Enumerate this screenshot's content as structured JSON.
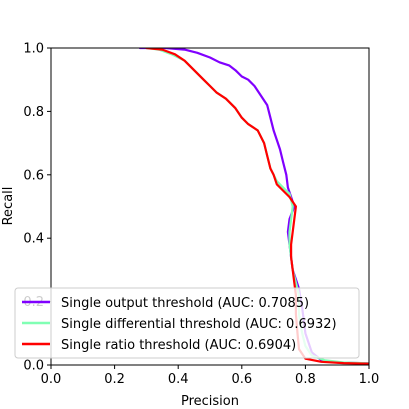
{
  "chart_data": {
    "type": "line",
    "xlabel": "Precision",
    "ylabel": "Recall",
    "xlim": [
      0.0,
      1.0
    ],
    "ylim": [
      0.0,
      1.0
    ],
    "x_ticks": [
      "0.0",
      "0.2",
      "0.4",
      "0.6",
      "0.8",
      "1.0"
    ],
    "y_ticks": [
      "0.0",
      "0.2",
      "0.4",
      "0.6",
      "0.8",
      "1.0"
    ],
    "grid": false,
    "legend_position": "lower-left",
    "series": [
      {
        "name": "Single output threshold (AUC: 0.7085)",
        "color": "#8000ff",
        "points": [
          [
            0.28,
            1.0
          ],
          [
            0.36,
            1.0
          ],
          [
            0.42,
            0.995
          ],
          [
            0.46,
            0.985
          ],
          [
            0.5,
            0.97
          ],
          [
            0.53,
            0.955
          ],
          [
            0.56,
            0.945
          ],
          [
            0.58,
            0.93
          ],
          [
            0.6,
            0.91
          ],
          [
            0.62,
            0.9
          ],
          [
            0.64,
            0.88
          ],
          [
            0.66,
            0.85
          ],
          [
            0.68,
            0.82
          ],
          [
            0.69,
            0.78
          ],
          [
            0.7,
            0.74
          ],
          [
            0.71,
            0.71
          ],
          [
            0.72,
            0.68
          ],
          [
            0.73,
            0.64
          ],
          [
            0.74,
            0.6
          ],
          [
            0.745,
            0.56
          ],
          [
            0.755,
            0.53
          ],
          [
            0.765,
            0.5
          ],
          [
            0.75,
            0.46
          ],
          [
            0.745,
            0.42
          ],
          [
            0.75,
            0.38
          ],
          [
            0.755,
            0.34
          ],
          [
            0.76,
            0.3
          ],
          [
            0.77,
            0.27
          ],
          [
            0.78,
            0.24
          ],
          [
            0.79,
            0.18
          ],
          [
            0.8,
            0.1
          ],
          [
            0.82,
            0.04
          ],
          [
            0.85,
            0.015
          ],
          [
            0.9,
            0.008
          ],
          [
            1.0,
            0.005
          ]
        ]
      },
      {
        "name": "Single differential threshold (AUC: 0.6932)",
        "color": "#80ffb4",
        "points": [
          [
            0.3,
            1.0
          ],
          [
            0.34,
            0.995
          ],
          [
            0.38,
            0.98
          ],
          [
            0.42,
            0.96
          ],
          [
            0.45,
            0.93
          ],
          [
            0.48,
            0.9
          ],
          [
            0.5,
            0.88
          ],
          [
            0.52,
            0.86
          ],
          [
            0.55,
            0.84
          ],
          [
            0.58,
            0.81
          ],
          [
            0.6,
            0.78
          ],
          [
            0.62,
            0.76
          ],
          [
            0.65,
            0.74
          ],
          [
            0.67,
            0.7
          ],
          [
            0.68,
            0.66
          ],
          [
            0.69,
            0.62
          ],
          [
            0.7,
            0.6
          ],
          [
            0.71,
            0.58
          ],
          [
            0.73,
            0.56
          ],
          [
            0.75,
            0.54
          ],
          [
            0.76,
            0.5
          ],
          [
            0.755,
            0.46
          ],
          [
            0.75,
            0.42
          ],
          [
            0.75,
            0.38
          ],
          [
            0.755,
            0.34
          ],
          [
            0.76,
            0.3
          ],
          [
            0.77,
            0.26
          ],
          [
            0.78,
            0.22
          ],
          [
            0.78,
            0.16
          ],
          [
            0.79,
            0.1
          ],
          [
            0.8,
            0.06
          ],
          [
            0.82,
            0.03
          ],
          [
            0.86,
            0.015
          ],
          [
            0.92,
            0.008
          ],
          [
            1.0,
            0.005
          ]
        ]
      },
      {
        "name": "Single ratio threshold (AUC: 0.6904)",
        "color": "#ff0000",
        "points": [
          [
            0.3,
            1.0
          ],
          [
            0.35,
            0.995
          ],
          [
            0.39,
            0.98
          ],
          [
            0.42,
            0.96
          ],
          [
            0.45,
            0.93
          ],
          [
            0.48,
            0.9
          ],
          [
            0.5,
            0.88
          ],
          [
            0.52,
            0.86
          ],
          [
            0.55,
            0.84
          ],
          [
            0.58,
            0.81
          ],
          [
            0.6,
            0.78
          ],
          [
            0.62,
            0.76
          ],
          [
            0.65,
            0.74
          ],
          [
            0.67,
            0.7
          ],
          [
            0.68,
            0.66
          ],
          [
            0.69,
            0.62
          ],
          [
            0.7,
            0.6
          ],
          [
            0.71,
            0.57
          ],
          [
            0.73,
            0.55
          ],
          [
            0.75,
            0.53
          ],
          [
            0.77,
            0.5
          ],
          [
            0.765,
            0.46
          ],
          [
            0.76,
            0.42
          ],
          [
            0.755,
            0.38
          ],
          [
            0.755,
            0.34
          ],
          [
            0.76,
            0.3
          ],
          [
            0.765,
            0.26
          ],
          [
            0.77,
            0.22
          ],
          [
            0.77,
            0.16
          ],
          [
            0.775,
            0.1
          ],
          [
            0.78,
            0.05
          ],
          [
            0.8,
            0.02
          ],
          [
            0.85,
            0.01
          ],
          [
            0.92,
            0.006
          ],
          [
            1.0,
            0.004
          ]
        ]
      }
    ]
  }
}
